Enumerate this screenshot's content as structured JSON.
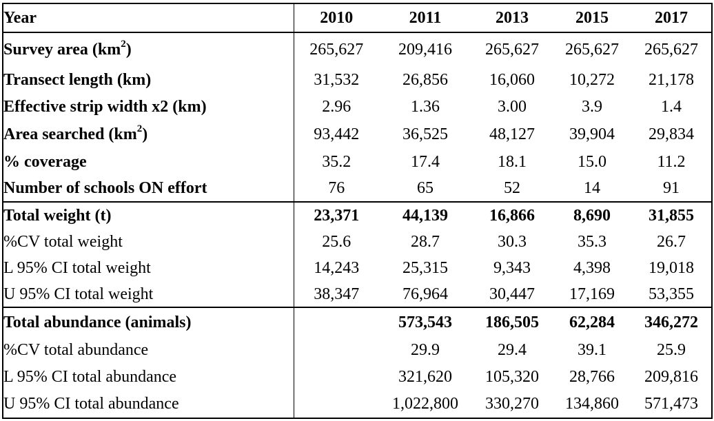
{
  "table": {
    "header": [
      "Year",
      "2010",
      "2011",
      "2013",
      "2015",
      "2017"
    ],
    "sections": [
      {
        "rows": [
          {
            "label": "Survey area (km",
            "sup": "2",
            "suffix": ")",
            "bold": true,
            "values": [
              "265,627",
              "209,416",
              "265,627",
              "265,627",
              "265,627"
            ]
          },
          {
            "label": "Transect length (km)",
            "bold": true,
            "values": [
              "31,532",
              "26,856",
              "16,060",
              "10,272",
              "21,178"
            ]
          },
          {
            "label": "Effective strip width x2 (km)",
            "bold": true,
            "values": [
              "2.96",
              "1.36",
              "3.00",
              "3.9",
              "1.4"
            ]
          },
          {
            "label": "Area searched (km",
            "sup": "2",
            "suffix": ")",
            "bold": true,
            "values": [
              "93,442",
              "36,525",
              "48,127",
              "39,904",
              "29,834"
            ]
          },
          {
            "label": "% coverage",
            "bold": true,
            "values": [
              "35.2",
              "17.4",
              "18.1",
              "15.0",
              "11.2"
            ]
          },
          {
            "label": "Number of schools ON effort",
            "bold": true,
            "values": [
              "76",
              "65",
              "52",
              "14",
              "91"
            ]
          }
        ]
      },
      {
        "rows": [
          {
            "label": "Total weight (t)",
            "bold": true,
            "boldValues": true,
            "values": [
              "23,371",
              "44,139",
              "16,866",
              "8,690",
              "31,855"
            ]
          },
          {
            "label": "%CV total weight",
            "values": [
              "25.6",
              "28.7",
              "30.3",
              "35.3",
              "26.7"
            ]
          },
          {
            "label": "L 95% CI total weight",
            "values": [
              "14,243",
              "25,315",
              "9,343",
              "4,398",
              "19,018"
            ]
          },
          {
            "label": "U 95% CI total weight",
            "values": [
              "38,347",
              "76,964",
              "30,447",
              "17,169",
              "53,355"
            ]
          }
        ]
      },
      {
        "rows": [
          {
            "label": "Total abundance (animals)",
            "bold": true,
            "boldValues": true,
            "values": [
              "",
              "573,543",
              "186,505",
              "62,284",
              "346,272"
            ]
          },
          {
            "label": "%CV total abundance",
            "values": [
              "",
              "29.9",
              "29.4",
              "39.1",
              "25.9"
            ]
          },
          {
            "label": "L 95% CI total abundance",
            "values": [
              "",
              "321,620",
              "105,320",
              "28,766",
              "209,816"
            ]
          },
          {
            "label": "U 95% CI total abundance",
            "values": [
              "",
              "1,022,800",
              "330,270",
              "134,860",
              "571,473"
            ]
          }
        ]
      }
    ]
  }
}
